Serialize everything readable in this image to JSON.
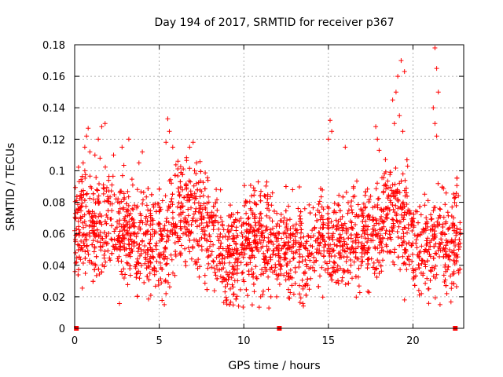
{
  "chart_data": {
    "type": "scatter",
    "title": "Day 194 of 2017, SRMTID for receiver p367",
    "xlabel": "GPS time / hours",
    "ylabel": "SRMTID / TECUs",
    "xlim": [
      0,
      23
    ],
    "ylim": [
      0,
      0.18
    ],
    "xticks": [
      0,
      5,
      10,
      15,
      20
    ],
    "xtick_labels": [
      "0",
      "5",
      "10",
      "15",
      "20"
    ],
    "yticks": [
      0,
      0.02,
      0.04,
      0.06,
      0.08,
      0.1,
      0.12,
      0.14,
      0.16,
      0.18
    ],
    "ytick_labels": [
      "0",
      "0.02",
      "0.04",
      "0.06",
      "0.08",
      "0.1",
      "0.12",
      "0.14",
      "0.16",
      "0.18"
    ],
    "grid": true,
    "marker": "plus",
    "color": "#ff0000",
    "zero_markers_x": [
      0.1,
      12.1,
      22.5
    ],
    "baseline": [
      [
        0.0,
        0.06
      ],
      [
        0.5,
        0.07
      ],
      [
        1.0,
        0.062
      ],
      [
        1.5,
        0.065
      ],
      [
        2.0,
        0.068
      ],
      [
        2.5,
        0.065
      ],
      [
        3.0,
        0.06
      ],
      [
        3.5,
        0.058
      ],
      [
        4.0,
        0.055
      ],
      [
        4.5,
        0.055
      ],
      [
        5.0,
        0.058
      ],
      [
        5.5,
        0.06
      ],
      [
        6.0,
        0.068
      ],
      [
        6.5,
        0.075
      ],
      [
        7.0,
        0.072
      ],
      [
        7.5,
        0.068
      ],
      [
        8.0,
        0.062
      ],
      [
        8.5,
        0.055
      ],
      [
        9.0,
        0.045
      ],
      [
        9.5,
        0.045
      ],
      [
        10.0,
        0.052
      ],
      [
        10.5,
        0.058
      ],
      [
        11.0,
        0.058
      ],
      [
        11.5,
        0.055
      ],
      [
        12.0,
        0.052
      ],
      [
        12.5,
        0.052
      ],
      [
        13.0,
        0.05
      ],
      [
        13.5,
        0.048
      ],
      [
        14.0,
        0.05
      ],
      [
        14.5,
        0.055
      ],
      [
        15.0,
        0.058
      ],
      [
        15.5,
        0.055
      ],
      [
        16.0,
        0.052
      ],
      [
        16.5,
        0.055
      ],
      [
        17.0,
        0.058
      ],
      [
        17.5,
        0.062
      ],
      [
        18.0,
        0.066
      ],
      [
        18.5,
        0.07
      ],
      [
        19.0,
        0.072
      ],
      [
        19.5,
        0.065
      ],
      [
        20.0,
        0.058
      ],
      [
        20.5,
        0.05
      ],
      [
        21.0,
        0.055
      ],
      [
        21.5,
        0.058
      ],
      [
        22.0,
        0.05
      ],
      [
        22.5,
        0.058
      ],
      [
        22.8,
        0.06
      ]
    ],
    "spread": 0.016,
    "point_count": 2600,
    "high_points": [
      [
        0.5,
        0.105
      ],
      [
        0.6,
        0.115
      ],
      [
        0.7,
        0.122
      ],
      [
        0.8,
        0.127
      ],
      [
        0.9,
        0.112
      ],
      [
        0.6,
        0.1
      ],
      [
        1.2,
        0.11
      ],
      [
        1.4,
        0.12
      ],
      [
        1.6,
        0.128
      ],
      [
        1.8,
        0.13
      ],
      [
        1.5,
        0.108
      ],
      [
        2.3,
        0.11
      ],
      [
        2.8,
        0.115
      ],
      [
        3.2,
        0.12
      ],
      [
        3.8,
        0.105
      ],
      [
        4.0,
        0.112
      ],
      [
        5.4,
        0.118
      ],
      [
        5.5,
        0.133
      ],
      [
        5.6,
        0.125
      ],
      [
        5.8,
        0.115
      ],
      [
        6.8,
        0.115
      ],
      [
        7.0,
        0.118
      ],
      [
        7.2,
        0.105
      ],
      [
        15.0,
        0.12
      ],
      [
        15.1,
        0.132
      ],
      [
        15.2,
        0.125
      ],
      [
        16.0,
        0.115
      ],
      [
        17.8,
        0.128
      ],
      [
        17.9,
        0.12
      ],
      [
        18.0,
        0.113
      ],
      [
        18.8,
        0.145
      ],
      [
        19.0,
        0.15
      ],
      [
        19.1,
        0.16
      ],
      [
        19.3,
        0.17
      ],
      [
        19.5,
        0.163
      ],
      [
        19.2,
        0.135
      ],
      [
        18.9,
        0.13
      ],
      [
        19.4,
        0.125
      ],
      [
        21.3,
        0.178
      ],
      [
        21.4,
        0.165
      ],
      [
        21.5,
        0.15
      ],
      [
        21.2,
        0.14
      ],
      [
        21.3,
        0.13
      ],
      [
        21.4,
        0.122
      ]
    ],
    "low_points": [
      [
        5.3,
        0.015
      ],
      [
        5.4,
        0.022
      ],
      [
        9.0,
        0.018
      ],
      [
        9.2,
        0.025
      ],
      [
        11.0,
        0.02
      ],
      [
        11.6,
        0.02
      ],
      [
        13.5,
        0.025
      ],
      [
        19.5,
        0.018
      ],
      [
        20.5,
        0.022
      ],
      [
        21.6,
        0.015
      ],
      [
        20.9,
        0.025
      ],
      [
        22.0,
        0.022
      ]
    ]
  }
}
